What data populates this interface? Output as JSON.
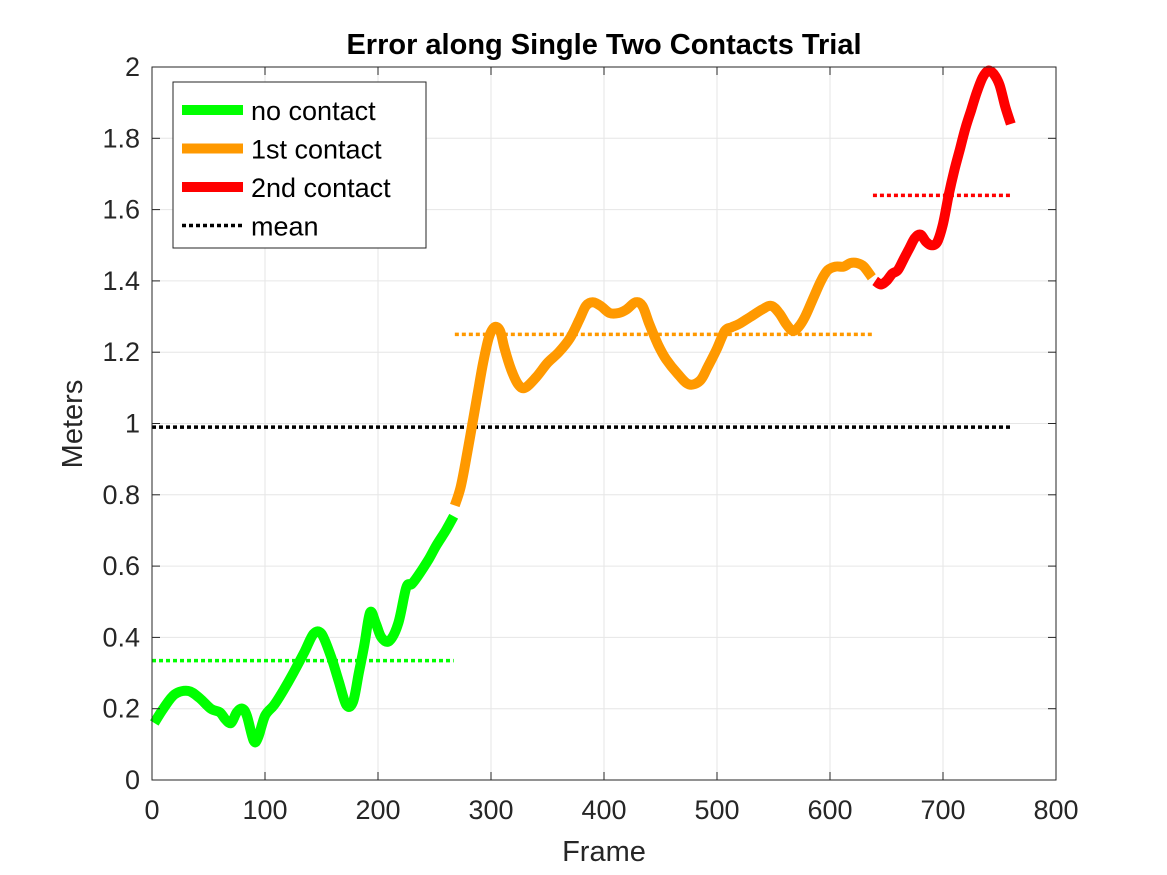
{
  "chart_data": {
    "type": "line",
    "title": "Error along Single Two Contacts Trial",
    "xlabel": "Frame",
    "ylabel": "Meters",
    "xlim": [
      0,
      800
    ],
    "ylim": [
      0,
      2
    ],
    "xticks": [
      0,
      100,
      200,
      300,
      400,
      500,
      600,
      700,
      800
    ],
    "yticks": [
      0,
      0.2,
      0.4,
      0.6,
      0.8,
      1,
      1.2,
      1.4,
      1.6,
      1.8,
      2
    ],
    "xtick_labels": [
      "0",
      "100",
      "200",
      "300",
      "400",
      "500",
      "600",
      "700",
      "800"
    ],
    "ytick_labels": [
      "0",
      "0.2",
      "0.4",
      "0.6",
      "0.8",
      "1",
      "1.2",
      "1.4",
      "1.6",
      "1.8",
      "2"
    ],
    "grid": true,
    "legend_position": "top-left",
    "legend": [
      {
        "label": "no contact",
        "color": "#00ff00",
        "style": "solid"
      },
      {
        "label": "1st contact",
        "color": "#ff9900",
        "style": "solid"
      },
      {
        "label": "2nd contact",
        "color": "#ff0000",
        "style": "solid"
      },
      {
        "label": "mean",
        "color": "#000000",
        "style": "dotted"
      }
    ],
    "series": [
      {
        "name": "no contact",
        "color": "#00ff00",
        "x": [
          2,
          10,
          20,
          32,
          42,
          52,
          60,
          65,
          70,
          75,
          80,
          84,
          90,
          94,
          100,
          108,
          116,
          125,
          135,
          143,
          150,
          158,
          165,
          172,
          178,
          183,
          188,
          193,
          198,
          203,
          210,
          218,
          225,
          230,
          237,
          245,
          252,
          260,
          267
        ],
        "y": [
          0.16,
          0.2,
          0.24,
          0.25,
          0.23,
          0.2,
          0.19,
          0.17,
          0.16,
          0.19,
          0.2,
          0.18,
          0.11,
          0.12,
          0.18,
          0.21,
          0.25,
          0.3,
          0.36,
          0.41,
          0.41,
          0.35,
          0.28,
          0.21,
          0.22,
          0.3,
          0.38,
          0.47,
          0.44,
          0.4,
          0.39,
          0.44,
          0.54,
          0.55,
          0.58,
          0.62,
          0.66,
          0.7,
          0.74
        ]
      },
      {
        "name": "1st contact",
        "color": "#ff9900",
        "x": [
          268,
          273,
          278,
          283,
          288,
          293,
          298,
          303,
          308,
          312,
          318,
          324,
          330,
          340,
          350,
          360,
          370,
          378,
          384,
          390,
          397,
          405,
          413,
          420,
          428,
          434,
          440,
          448,
          455,
          465,
          475,
          485,
          492,
          500,
          507,
          513,
          520,
          530,
          540,
          548,
          555,
          561,
          567,
          572,
          578,
          585,
          592,
          598,
          605,
          612,
          618,
          624,
          630,
          637
        ],
        "y": [
          0.77,
          0.82,
          0.9,
          0.99,
          1.08,
          1.17,
          1.24,
          1.27,
          1.26,
          1.21,
          1.15,
          1.11,
          1.1,
          1.13,
          1.17,
          1.2,
          1.24,
          1.29,
          1.33,
          1.34,
          1.33,
          1.31,
          1.31,
          1.32,
          1.34,
          1.33,
          1.28,
          1.22,
          1.18,
          1.14,
          1.11,
          1.12,
          1.16,
          1.21,
          1.26,
          1.27,
          1.28,
          1.3,
          1.32,
          1.33,
          1.31,
          1.28,
          1.26,
          1.27,
          1.3,
          1.35,
          1.4,
          1.43,
          1.44,
          1.44,
          1.45,
          1.45,
          1.44,
          1.41
        ]
      },
      {
        "name": "2nd contact",
        "color": "#ff0000",
        "x": [
          640,
          645,
          650,
          655,
          660,
          665,
          670,
          675,
          680,
          685,
          690,
          695,
          700,
          705,
          710,
          715,
          720,
          725,
          730,
          735,
          740,
          745,
          750,
          755,
          760
        ],
        "y": [
          1.4,
          1.39,
          1.4,
          1.42,
          1.43,
          1.46,
          1.49,
          1.52,
          1.53,
          1.51,
          1.5,
          1.51,
          1.56,
          1.64,
          1.71,
          1.77,
          1.83,
          1.88,
          1.93,
          1.97,
          1.99,
          1.98,
          1.95,
          1.89,
          1.84
        ]
      }
    ],
    "mean_lines": [
      {
        "name": "mean no contact",
        "color": "#00ff00",
        "x0": 0,
        "x1": 267,
        "y": 0.335
      },
      {
        "name": "mean 1st contact",
        "color": "#ff9900",
        "x0": 268,
        "x1": 637,
        "y": 1.25
      },
      {
        "name": "mean 2nd contact",
        "color": "#ff0000",
        "x0": 638,
        "x1": 761,
        "y": 1.64
      },
      {
        "name": "mean overall",
        "color": "#000000",
        "x0": 0,
        "x1": 761,
        "y": 0.99
      }
    ]
  }
}
